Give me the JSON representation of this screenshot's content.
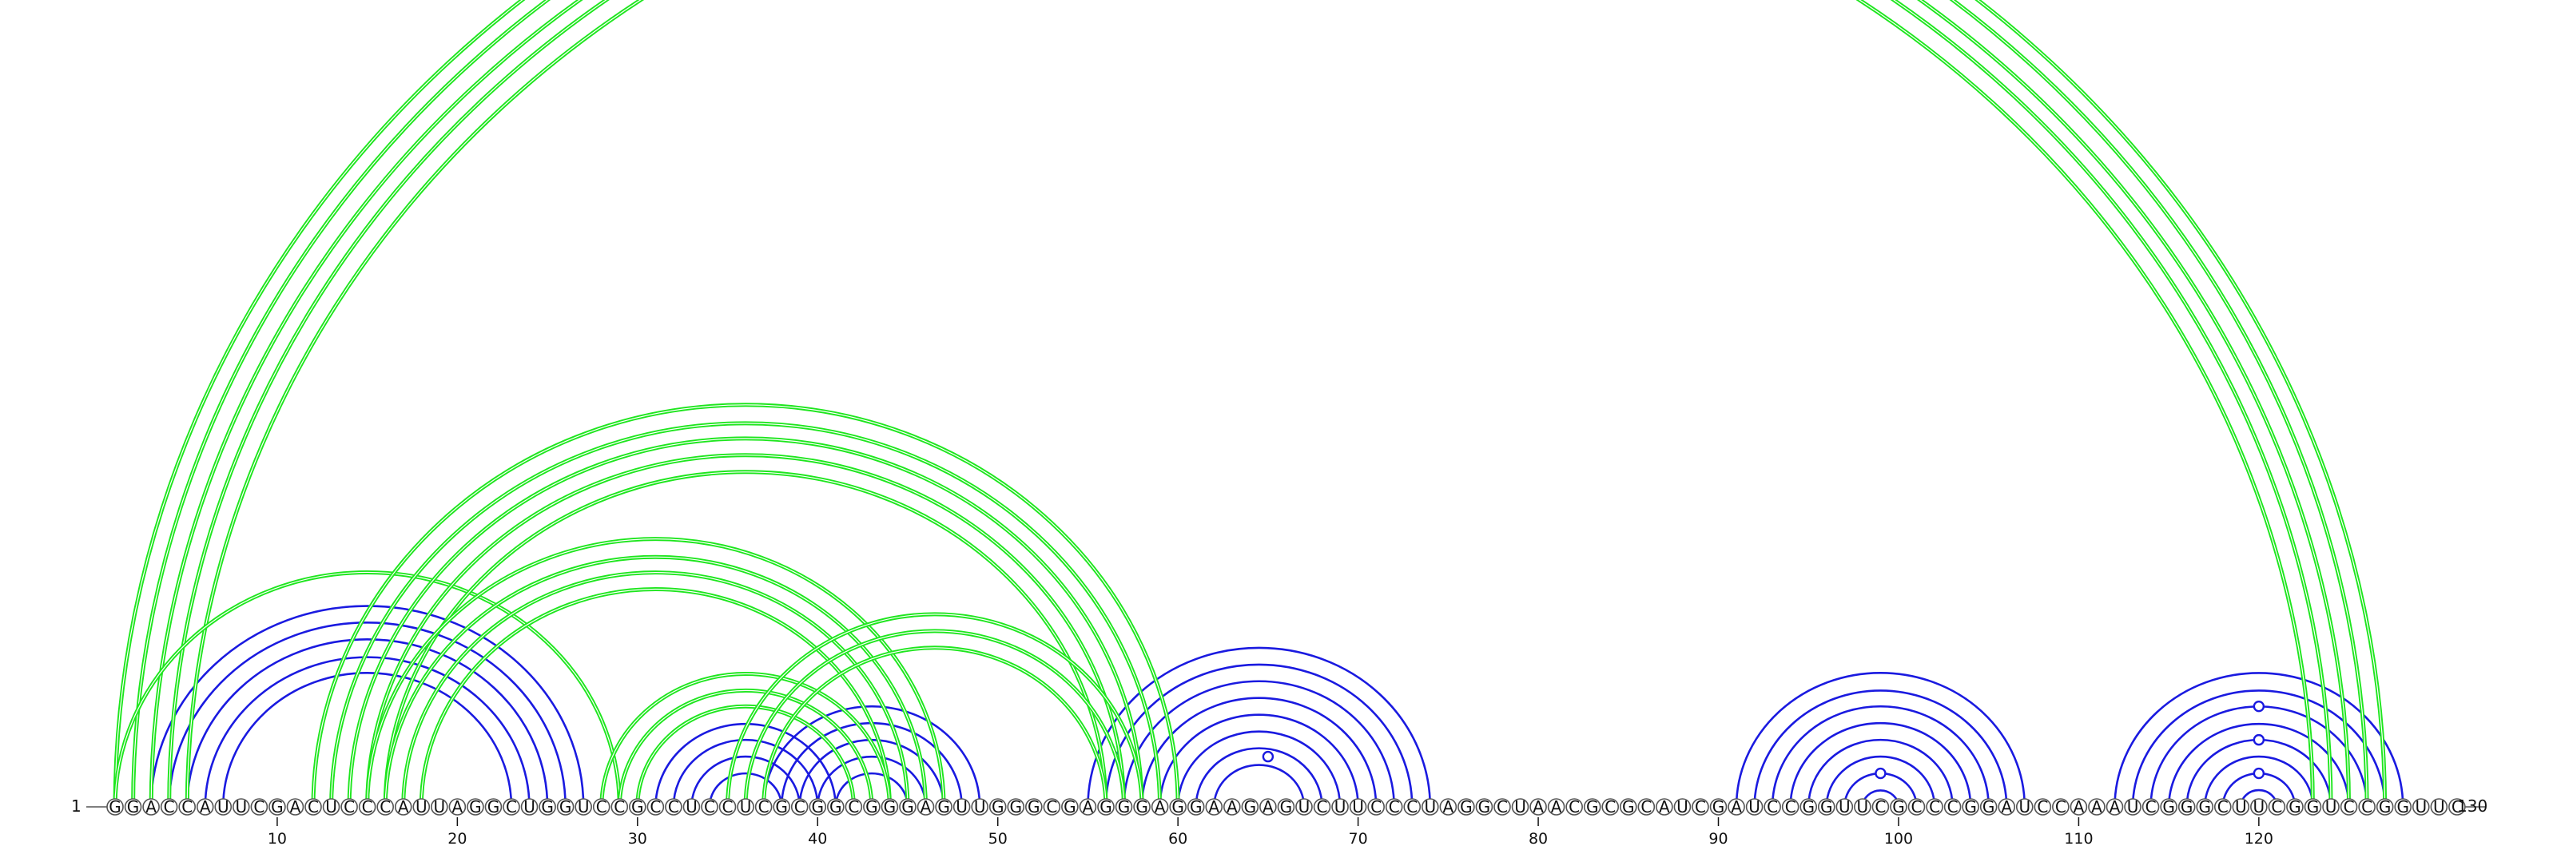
{
  "diagram": {
    "sequence": "GGACCAUUCGACUCCCAUUAGGCUGGUCCGCCUCCUCGCGGCGGGAGUUGGGCGAGGGAGGAAGAGUCUUCCCUAGGCUAACGCGCAUCGAUCCGGUUCGCCCGGAUCCAAAUCGGGCUUCGGUCCGGUUC",
    "start_label": "1",
    "end_label": "130",
    "ticks": [
      10,
      20,
      30,
      40,
      50,
      60,
      70,
      80,
      90,
      100,
      110,
      120
    ],
    "colors": {
      "blue": "#1a1ae0",
      "green": "#1ee61e"
    },
    "blue_helices": [
      {
        "i": 3,
        "j": 27,
        "n": 5
      },
      {
        "i": 30,
        "j": 42,
        "n": 5
      },
      {
        "i": 37,
        "j": 49,
        "n": 5
      },
      {
        "i": 55,
        "j": 74,
        "n": 8
      },
      {
        "i": 91,
        "j": 107,
        "n": 8
      },
      {
        "i": 112,
        "j": 128,
        "n": 8
      }
    ],
    "green_helices": [
      {
        "i": 1,
        "j": 127,
        "n": 5
      },
      {
        "i": 1,
        "j": 29,
        "n": 1
      },
      {
        "i": 12,
        "j": 60,
        "n": 5
      },
      {
        "i": 15,
        "j": 47,
        "n": 4
      },
      {
        "i": 28,
        "j": 44,
        "n": 3
      },
      {
        "i": 35,
        "j": 58,
        "n": 3
      }
    ],
    "marked_pairs": [
      {
        "i": 62,
        "j": 68
      },
      {
        "i": 97,
        "j": 101
      },
      {
        "i": 118,
        "j": 122
      },
      {
        "i": 116,
        "j": 124
      },
      {
        "i": 114,
        "j": 126
      }
    ]
  }
}
